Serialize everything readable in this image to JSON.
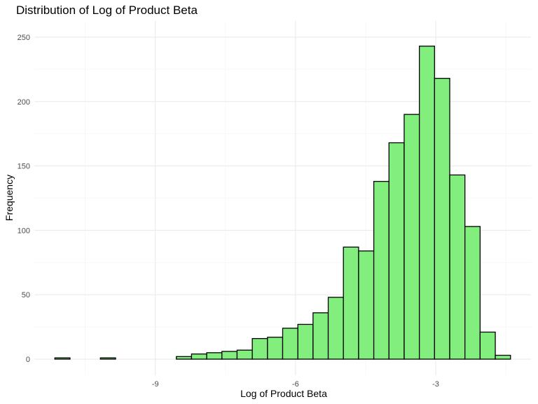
{
  "chart_data": {
    "type": "bar",
    "title": "Distribution of Log of Product Beta",
    "xlabel": "Log of Product Beta",
    "ylabel": "Frequency",
    "bar_color": "#82ee7d",
    "bar_border": "#000000",
    "bin_width": 0.325,
    "bins_start": -11.15,
    "counts": [
      1,
      0,
      0,
      1,
      0,
      0,
      0,
      0,
      2,
      4,
      5,
      6,
      7,
      16,
      17,
      24,
      27,
      36,
      48,
      87,
      84,
      138,
      168,
      190,
      243,
      218,
      143,
      103,
      21,
      3
    ],
    "xlim": [
      -11.15,
      -1.4
    ],
    "ylim": [
      0,
      250
    ],
    "x_ticks": [
      -9,
      -6,
      -3
    ],
    "x_tick_labels": [
      "-9",
      "-6",
      "-3"
    ],
    "y_ticks": [
      0,
      50,
      100,
      150,
      200,
      250
    ],
    "y_tick_labels": [
      "0",
      "50",
      "100",
      "150",
      "200",
      "250"
    ],
    "grid": true
  }
}
